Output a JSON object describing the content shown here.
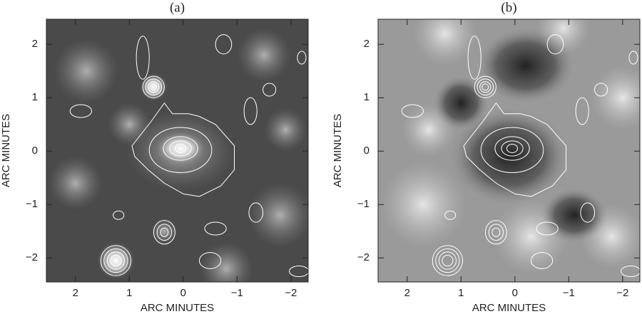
{
  "chart_data": [
    {
      "type": "image",
      "title": "(a)",
      "xlabel": "ARC MINUTES",
      "ylabel": "ARC MINUTES",
      "xlim": [
        2.54,
        -2.32
      ],
      "ylim": [
        -2.45,
        2.47
      ],
      "xticks": [
        2,
        1,
        0,
        {
          "value": -1,
          "label": "−1"
        },
        {
          "value": -2,
          "label": "−2"
        }
      ],
      "yticks": [
        {
          "value": -2,
          "label": "−2"
        },
        {
          "value": -1,
          "label": "−1"
        },
        0,
        1,
        2
      ]
    },
    {
      "type": "image",
      "title": "(b)",
      "xlabel": "ARC MINUTES",
      "ylabel": "ARC MINUTES",
      "xlim": [
        2.54,
        -2.32
      ],
      "ylim": [
        -2.45,
        2.47
      ],
      "xticks": [
        2,
        1,
        0,
        {
          "value": -1,
          "label": "−1"
        },
        {
          "value": -2,
          "label": "−2"
        }
      ],
      "yticks": [
        {
          "value": -2,
          "label": "−2"
        },
        {
          "value": -1,
          "label": "−1"
        },
        0,
        1,
        2
      ]
    }
  ]
}
